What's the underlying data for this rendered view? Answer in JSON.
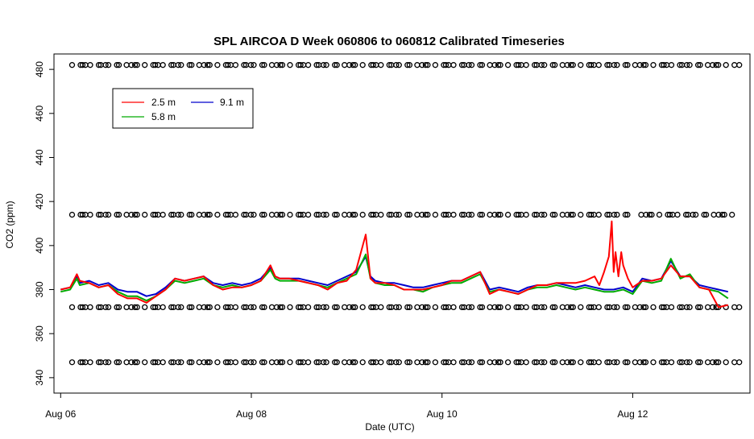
{
  "chart_data": {
    "type": "line",
    "title": "SPL AIRCOA D  Week 060806 to 060812  Calibrated Timeseries",
    "xlabel": "Date (UTC)",
    "ylabel": "CO2 (ppm)",
    "xlim": [
      -0.07,
      7.23
    ],
    "ylim": [
      333,
      487
    ],
    "x_ticks": [
      {
        "value": 0,
        "label": "Aug 06"
      },
      {
        "value": 2,
        "label": "Aug 08"
      },
      {
        "value": 4,
        "label": "Aug 10"
      },
      {
        "value": 6,
        "label": "Aug 12"
      }
    ],
    "y_ticks": [
      340,
      360,
      380,
      400,
      420,
      440,
      460,
      480
    ],
    "legend": {
      "placement": "top-left",
      "entries": [
        {
          "label": "2.5 m",
          "color": "#ff0000"
        },
        {
          "label": "9.1 m",
          "color": "#0000cc"
        },
        {
          "label": "5.8 m",
          "color": "#00aa00"
        }
      ]
    },
    "series": [
      {
        "name": "9.1 m",
        "color": "#0000cc",
        "x": [
          0,
          0.1,
          0.17,
          0.2,
          0.3,
          0.4,
          0.5,
          0.6,
          0.7,
          0.8,
          0.9,
          1.0,
          1.1,
          1.2,
          1.3,
          1.4,
          1.5,
          1.6,
          1.7,
          1.8,
          1.9,
          2.0,
          2.1,
          2.2,
          2.25,
          2.3,
          2.4,
          2.5,
          2.6,
          2.7,
          2.8,
          2.9,
          3.0,
          3.1,
          3.2,
          3.25,
          3.3,
          3.4,
          3.5,
          3.6,
          3.7,
          3.8,
          3.9,
          4.0,
          4.1,
          4.2,
          4.3,
          4.4,
          4.5,
          4.6,
          4.7,
          4.8,
          4.9,
          5.0,
          5.1,
          5.2,
          5.3,
          5.4,
          5.5,
          5.6,
          5.7,
          5.8,
          5.9,
          6.0,
          6.1,
          6.2,
          6.3,
          6.4,
          6.5,
          6.6,
          6.7,
          6.8,
          6.9,
          7.0
        ],
        "values": [
          380,
          381,
          386,
          383,
          384,
          382,
          383,
          380,
          379,
          379,
          377,
          378,
          381,
          385,
          384,
          385,
          386,
          383,
          382,
          383,
          382,
          383,
          385,
          390,
          386,
          385,
          385,
          385,
          384,
          383,
          382,
          384,
          386,
          388,
          395,
          386,
          384,
          383,
          383,
          382,
          381,
          381,
          382,
          383,
          384,
          384,
          386,
          388,
          380,
          381,
          380,
          379,
          381,
          382,
          382,
          383,
          382,
          381,
          382,
          381,
          380,
          380,
          381,
          379,
          385,
          384,
          385,
          393,
          386,
          386,
          382,
          381,
          380,
          379
        ]
      },
      {
        "name": "5.8 m",
        "color": "#00aa00",
        "x": [
          0,
          0.1,
          0.17,
          0.2,
          0.3,
          0.4,
          0.5,
          0.6,
          0.7,
          0.8,
          0.9,
          1.0,
          1.1,
          1.2,
          1.3,
          1.4,
          1.5,
          1.6,
          1.7,
          1.8,
          1.9,
          2.0,
          2.1,
          2.2,
          2.25,
          2.3,
          2.4,
          2.5,
          2.6,
          2.7,
          2.8,
          2.9,
          3.0,
          3.1,
          3.2,
          3.25,
          3.3,
          3.4,
          3.5,
          3.6,
          3.7,
          3.8,
          3.9,
          4.0,
          4.1,
          4.2,
          4.3,
          4.4,
          4.5,
          4.6,
          4.7,
          4.8,
          4.9,
          5.0,
          5.1,
          5.2,
          5.3,
          5.4,
          5.5,
          5.6,
          5.7,
          5.8,
          5.9,
          6.0,
          6.1,
          6.2,
          6.3,
          6.4,
          6.5,
          6.6,
          6.7,
          6.8,
          6.9,
          7.0
        ],
        "values": [
          379,
          380,
          385,
          382,
          383,
          381,
          382,
          379,
          377,
          377,
          375,
          377,
          380,
          384,
          383,
          384,
          385,
          382,
          381,
          382,
          381,
          382,
          384,
          389,
          385,
          384,
          384,
          384,
          383,
          382,
          381,
          383,
          385,
          387,
          396,
          385,
          383,
          382,
          382,
          380,
          380,
          379,
          381,
          382,
          383,
          383,
          385,
          387,
          379,
          380,
          379,
          378,
          380,
          381,
          381,
          382,
          381,
          380,
          381,
          380,
          379,
          379,
          380,
          378,
          384,
          383,
          384,
          394,
          385,
          387,
          381,
          380,
          379,
          376
        ]
      },
      {
        "name": "2.5 m",
        "color": "#ff0000",
        "x": [
          0,
          0.1,
          0.17,
          0.2,
          0.3,
          0.4,
          0.5,
          0.6,
          0.7,
          0.8,
          0.9,
          1.0,
          1.1,
          1.2,
          1.3,
          1.4,
          1.5,
          1.6,
          1.7,
          1.8,
          1.9,
          2.0,
          2.1,
          2.2,
          2.25,
          2.3,
          2.4,
          2.5,
          2.6,
          2.7,
          2.8,
          2.9,
          3.0,
          3.1,
          3.2,
          3.25,
          3.3,
          3.4,
          3.5,
          3.6,
          3.7,
          3.8,
          3.9,
          4.0,
          4.1,
          4.2,
          4.3,
          4.4,
          4.5,
          4.6,
          4.7,
          4.8,
          4.9,
          5.0,
          5.1,
          5.2,
          5.3,
          5.4,
          5.5,
          5.6,
          5.65,
          5.7,
          5.75,
          5.78,
          5.8,
          5.82,
          5.85,
          5.88,
          5.9,
          5.95,
          6.0,
          6.1,
          6.2,
          6.3,
          6.4,
          6.5,
          6.6,
          6.7,
          6.8,
          6.9,
          7.0
        ],
        "values": [
          380,
          381,
          387,
          384,
          383,
          381,
          382,
          378,
          376,
          376,
          374,
          377,
          380,
          385,
          384,
          385,
          386,
          382,
          380,
          381,
          381,
          382,
          384,
          391,
          386,
          385,
          385,
          384,
          383,
          382,
          380,
          383,
          384,
          389,
          405,
          385,
          383,
          383,
          382,
          380,
          380,
          380,
          381,
          382,
          384,
          384,
          386,
          388,
          378,
          380,
          379,
          378,
          380,
          382,
          382,
          383,
          383,
          383,
          384,
          386,
          382,
          388,
          395,
          411,
          388,
          397,
          386,
          397,
          391,
          385,
          381,
          384,
          384,
          385,
          391,
          386,
          386,
          381,
          380,
          372,
          373
        ]
      }
    ]
  }
}
